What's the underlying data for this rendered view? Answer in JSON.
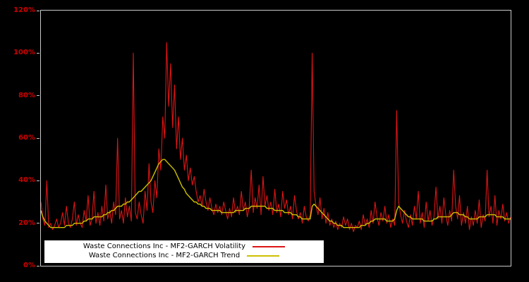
{
  "chart_data": {
    "type": "line",
    "title": "",
    "xlabel": "",
    "ylabel": "",
    "ylim": [
      0,
      120
    ],
    "yticks": [
      "120%",
      "100%",
      "80%",
      "60%",
      "40%",
      "20%",
      "0%"
    ],
    "ytick_color": "#cc0000",
    "background": "#000000",
    "plot_border_color": "#c8c8c8",
    "grid": false,
    "legend_position": "bottom-left",
    "legend_background": "#ffffff",
    "series": [
      {
        "name": "Waste Connections Inc - MF2-GARCH Volatility",
        "color": "#dd1515",
        "values": [
          30,
          22,
          19,
          40,
          18,
          20,
          17,
          19,
          22,
          18,
          20,
          25,
          19,
          28,
          20,
          18,
          22,
          30,
          19,
          24,
          20,
          18,
          26,
          21,
          33,
          19,
          22,
          35,
          20,
          25,
          19,
          28,
          21,
          38,
          22,
          26,
          20,
          30,
          24,
          60,
          22,
          26,
          20,
          32,
          23,
          28,
          21,
          100,
          25,
          22,
          30,
          24,
          20,
          35,
          26,
          48,
          30,
          25,
          40,
          32,
          55,
          45,
          70,
          60,
          105,
          75,
          95,
          65,
          85,
          55,
          70,
          50,
          60,
          45,
          52,
          40,
          46,
          38,
          42,
          35,
          30,
          33,
          28,
          36,
          30,
          26,
          32,
          27,
          24,
          29,
          25,
          28,
          24,
          30,
          26,
          22,
          27,
          23,
          32,
          25,
          28,
          24,
          35,
          26,
          30,
          23,
          28,
          45,
          25,
          32,
          27,
          38,
          24,
          42,
          28,
          33,
          26,
          30,
          24,
          36,
          25,
          29,
          23,
          35,
          27,
          31,
          24,
          28,
          22,
          33,
          26,
          22,
          25,
          20,
          28,
          23,
          21,
          24,
          100,
          35,
          28,
          24,
          32,
          22,
          27,
          20,
          25,
          19,
          22,
          18,
          21,
          17,
          20,
          18,
          23,
          19,
          22,
          17,
          20,
          16,
          19,
          18,
          21,
          17,
          24,
          19,
          22,
          18,
          26,
          20,
          30,
          23,
          19,
          25,
          21,
          28,
          20,
          24,
          18,
          22,
          19,
          73,
          30,
          24,
          20,
          26,
          21,
          18,
          24,
          19,
          28,
          22,
          35,
          20,
          25,
          18,
          30,
          21,
          26,
          19,
          23,
          37,
          22,
          28,
          20,
          32,
          24,
          19,
          26,
          21,
          45,
          28,
          22,
          33,
          19,
          25,
          20,
          28,
          17,
          23,
          19,
          26,
          20,
          31,
          18,
          24,
          21,
          45,
          23,
          28,
          20,
          33,
          19,
          26,
          22,
          29,
          21,
          25,
          20,
          23
        ]
      },
      {
        "name": "Waste Connections Inc - MF2-GARCH Trend",
        "color": "#cdc000",
        "values": [
          26,
          23,
          21,
          20,
          19,
          18,
          18,
          18,
          18,
          18,
          18,
          18,
          18,
          19,
          19,
          19,
          19,
          20,
          20,
          20,
          20,
          20,
          21,
          21,
          22,
          22,
          22,
          23,
          23,
          23,
          23,
          23,
          24,
          24,
          25,
          25,
          26,
          26,
          27,
          28,
          28,
          28,
          29,
          29,
          30,
          30,
          31,
          32,
          33,
          34,
          35,
          35,
          36,
          37,
          38,
          39,
          40,
          42,
          44,
          46,
          48,
          49,
          50,
          50,
          49,
          48,
          47,
          46,
          45,
          43,
          41,
          39,
          37,
          36,
          34,
          33,
          32,
          31,
          30,
          30,
          29,
          29,
          28,
          28,
          27,
          27,
          27,
          26,
          26,
          26,
          26,
          26,
          25,
          25,
          25,
          25,
          25,
          25,
          25,
          26,
          26,
          26,
          26,
          26,
          27,
          27,
          27,
          28,
          28,
          28,
          28,
          28,
          28,
          28,
          28,
          27,
          27,
          27,
          27,
          26,
          26,
          26,
          26,
          26,
          25,
          25,
          25,
          25,
          24,
          24,
          24,
          23,
          23,
          22,
          22,
          22,
          22,
          22,
          28,
          29,
          28,
          27,
          26,
          25,
          24,
          23,
          22,
          21,
          21,
          20,
          20,
          19,
          19,
          19,
          18,
          18,
          18,
          18,
          18,
          18,
          18,
          18,
          18,
          19,
          19,
          19,
          20,
          20,
          21,
          21,
          22,
          22,
          22,
          22,
          22,
          22,
          21,
          21,
          21,
          21,
          22,
          26,
          28,
          27,
          26,
          25,
          24,
          23,
          23,
          22,
          22,
          22,
          22,
          22,
          22,
          21,
          21,
          21,
          21,
          21,
          22,
          22,
          23,
          23,
          23,
          23,
          23,
          23,
          23,
          24,
          25,
          25,
          25,
          24,
          24,
          24,
          23,
          23,
          22,
          22,
          22,
          22,
          22,
          23,
          23,
          23,
          23,
          24,
          24,
          24,
          24,
          24,
          23,
          23,
          23,
          23,
          22,
          22,
          22,
          22
        ]
      }
    ]
  }
}
